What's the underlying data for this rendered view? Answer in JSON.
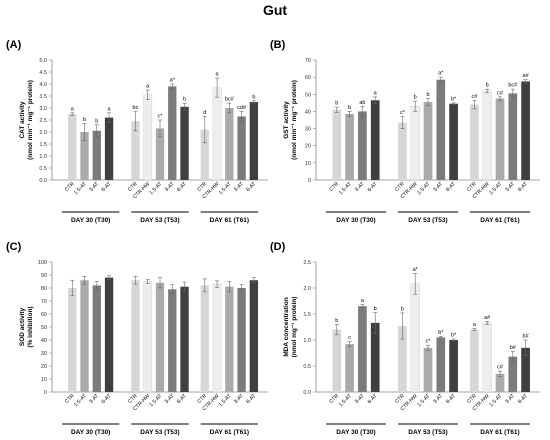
{
  "page_title": "Gut",
  "groups": [
    "DAY 30 (T30)",
    "DAY 53 (T53)",
    "DAY 61 (T61)"
  ],
  "colors": {
    "CTR": "#d6d6d6",
    "CTR-HW": "#ededed",
    "1.5-AT": "#aaaaaa",
    "3-AT": "#7b7b7b",
    "6-AT": "#3f3f3f"
  },
  "chart_data": [
    {
      "panel": "(A)",
      "type": "bar",
      "ylabel": "CAT activity\n(nmol min⁻¹ mg⁻¹ protein)",
      "ylim": [
        0,
        5
      ],
      "yticks": [
        "0.0",
        "0.5",
        "1.0",
        "1.5",
        "2.0",
        "2.5",
        "3.0",
        "3.5",
        "4.0",
        "4.5",
        "5.0"
      ],
      "ytick_step": 0.5,
      "groups": [
        {
          "label": "DAY 30 (T30)",
          "bars": [
            {
              "cat": "CTR",
              "value": 2.75,
              "err": 0.05,
              "sig": "a"
            },
            {
              "cat": "1.5-AT",
              "value": 2.0,
              "err": 0.35,
              "sig": "b"
            },
            {
              "cat": "3-AT",
              "value": 2.05,
              "err": 0.25,
              "sig": "b"
            },
            {
              "cat": "6-AT",
              "value": 2.6,
              "err": 0.2,
              "sig": "a"
            }
          ]
        },
        {
          "label": "DAY 53 (T53)",
          "bars": [
            {
              "cat": "CTR",
              "value": 2.45,
              "err": 0.4,
              "sig": "bc"
            },
            {
              "cat": "CTR-HW",
              "value": 3.55,
              "err": 0.2,
              "sig": "a"
            },
            {
              "cat": "1.5-AT",
              "value": 2.15,
              "err": 0.35,
              "sig": "c*"
            },
            {
              "cat": "3-AT",
              "value": 3.9,
              "err": 0.1,
              "sig": "a*"
            },
            {
              "cat": "6-AT",
              "value": 3.05,
              "err": 0.15,
              "sig": "b"
            }
          ]
        },
        {
          "label": "DAY 61 (T61)",
          "bars": [
            {
              "cat": "CTR",
              "value": 2.1,
              "err": 0.55,
              "sig": "d"
            },
            {
              "cat": "CTR-HW",
              "value": 3.85,
              "err": 0.4,
              "sig": "a"
            },
            {
              "cat": "1.5-AT",
              "value": 3.0,
              "err": 0.2,
              "sig": "bc#"
            },
            {
              "cat": "3-AT",
              "value": 2.65,
              "err": 0.2,
              "sig": "cd#"
            },
            {
              "cat": "6-AT",
              "value": 3.25,
              "err": 0.05,
              "sig": "b"
            }
          ]
        }
      ]
    },
    {
      "panel": "(B)",
      "type": "bar",
      "ylabel": "GST activity\n(nmol min⁻¹ mg⁻¹ protein)",
      "ylim": [
        0,
        70
      ],
      "yticks": [
        "0",
        "10",
        "20",
        "30",
        "40",
        "50",
        "60",
        "70"
      ],
      "ytick_step": 10,
      "groups": [
        {
          "label": "DAY 30 (T30)",
          "bars": [
            {
              "cat": "CTR",
              "value": 41,
              "err": 1.5,
              "sig": "b"
            },
            {
              "cat": "1.5-AT",
              "value": 38.5,
              "err": 1.5,
              "sig": "b"
            },
            {
              "cat": "3-AT",
              "value": 40,
              "err": 3,
              "sig": "ab"
            },
            {
              "cat": "6-AT",
              "value": 46.5,
              "err": 2,
              "sig": "a"
            }
          ]
        },
        {
          "label": "DAY 53 (T53)",
          "bars": [
            {
              "cat": "CTR",
              "value": 33.5,
              "err": 3.5,
              "sig": "c*"
            },
            {
              "cat": "CTR-HW",
              "value": 43,
              "err": 3,
              "sig": "b"
            },
            {
              "cat": "1.5-AT",
              "value": 45.5,
              "err": 2,
              "sig": "b"
            },
            {
              "cat": "3-AT",
              "value": 58.5,
              "err": 1.5,
              "sig": "a*"
            },
            {
              "cat": "6-AT",
              "value": 44.5,
              "err": 0.5,
              "sig": "b*"
            }
          ]
        },
        {
          "label": "DAY 61 (T61)",
          "bars": [
            {
              "cat": "CTR",
              "value": 44,
              "err": 2.5,
              "sig": "c#"
            },
            {
              "cat": "CTR-HW",
              "value": 52,
              "err": 1,
              "sig": "b"
            },
            {
              "cat": "1.5-AT",
              "value": 47.5,
              "err": 1,
              "sig": "c#"
            },
            {
              "cat": "3-AT",
              "value": 50.5,
              "err": 2.5,
              "sig": "bc#"
            },
            {
              "cat": "6-AT",
              "value": 57.5,
              "err": 1,
              "sig": "a#"
            }
          ]
        }
      ]
    },
    {
      "panel": "(C)",
      "type": "bar",
      "ylabel": "SOD activity\n(% inhibition)",
      "ylim": [
        0,
        100
      ],
      "yticks": [
        "0",
        "10",
        "20",
        "30",
        "40",
        "50",
        "60",
        "70",
        "80",
        "90",
        "100"
      ],
      "ytick_step": 10,
      "groups": [
        {
          "label": "DAY 30 (T30)",
          "bars": [
            {
              "cat": "CTR",
              "value": 80,
              "err": 6,
              "sig": ""
            },
            {
              "cat": "1.5-AT",
              "value": 86,
              "err": 3,
              "sig": ""
            },
            {
              "cat": "3-AT",
              "value": 82,
              "err": 3,
              "sig": ""
            },
            {
              "cat": "6-AT",
              "value": 88,
              "err": 1.5,
              "sig": ""
            }
          ]
        },
        {
          "label": "DAY 53 (T53)",
          "bars": [
            {
              "cat": "CTR",
              "value": 86,
              "err": 3,
              "sig": ""
            },
            {
              "cat": "CTR-HW",
              "value": 85,
              "err": 1.5,
              "sig": ""
            },
            {
              "cat": "1.5-AT",
              "value": 84,
              "err": 4,
              "sig": ""
            },
            {
              "cat": "3-AT",
              "value": 79,
              "err": 3.5,
              "sig": ""
            },
            {
              "cat": "6-AT",
              "value": 81,
              "err": 3.5,
              "sig": ""
            }
          ]
        },
        {
          "label": "DAY 61 (T61)",
          "bars": [
            {
              "cat": "CTR",
              "value": 82,
              "err": 5,
              "sig": ""
            },
            {
              "cat": "CTR-HW",
              "value": 83,
              "err": 2.5,
              "sig": ""
            },
            {
              "cat": "1.5-AT",
              "value": 81,
              "err": 4,
              "sig": ""
            },
            {
              "cat": "3-AT",
              "value": 80,
              "err": 2.5,
              "sig": ""
            },
            {
              "cat": "6-AT",
              "value": 86,
              "err": 2,
              "sig": ""
            }
          ]
        }
      ]
    },
    {
      "panel": "(D)",
      "type": "bar",
      "ylabel": "MDA concentration\n(nmol mg⁻¹ protein)",
      "ylim": [
        0,
        2.5
      ],
      "yticks": [
        "0.0",
        "0.5",
        "1.0",
        "1.5",
        "2.0",
        "2.5"
      ],
      "ytick_step": 0.5,
      "groups": [
        {
          "label": "DAY 30 (T30)",
          "bars": [
            {
              "cat": "CTR",
              "value": 1.2,
              "err": 0.1,
              "sig": "b"
            },
            {
              "cat": "1.5-AT",
              "value": 0.92,
              "err": 0.05,
              "sig": "c"
            },
            {
              "cat": "3-AT",
              "value": 1.65,
              "err": 0.03,
              "sig": "a"
            },
            {
              "cat": "6-AT",
              "value": 1.33,
              "err": 0.2,
              "sig": "b"
            }
          ]
        },
        {
          "label": "DAY 53 (T53)",
          "bars": [
            {
              "cat": "CTR",
              "value": 1.27,
              "err": 0.25,
              "sig": "b"
            },
            {
              "cat": "CTR-HW",
              "value": 2.08,
              "err": 0.2,
              "sig": "a*"
            },
            {
              "cat": "1.5-AT",
              "value": 0.85,
              "err": 0.05,
              "sig": "c*"
            },
            {
              "cat": "3-AT",
              "value": 1.05,
              "err": 0.02,
              "sig": "b*"
            },
            {
              "cat": "6-AT",
              "value": 1.0,
              "err": 0.02,
              "sig": "b*"
            }
          ]
        },
        {
          "label": "DAY 61 (T61)",
          "bars": [
            {
              "cat": "CTR",
              "value": 1.2,
              "err": 0.02,
              "sig": "a"
            },
            {
              "cat": "CTR-HW",
              "value": 1.33,
              "err": 0.03,
              "sig": "a#"
            },
            {
              "cat": "1.5-AT",
              "value": 0.35,
              "err": 0.05,
              "sig": "c#"
            },
            {
              "cat": "3-AT",
              "value": 0.68,
              "err": 0.1,
              "sig": "b#"
            },
            {
              "cat": "6-AT",
              "value": 0.85,
              "err": 0.15,
              "sig": "b#"
            }
          ]
        }
      ]
    }
  ]
}
